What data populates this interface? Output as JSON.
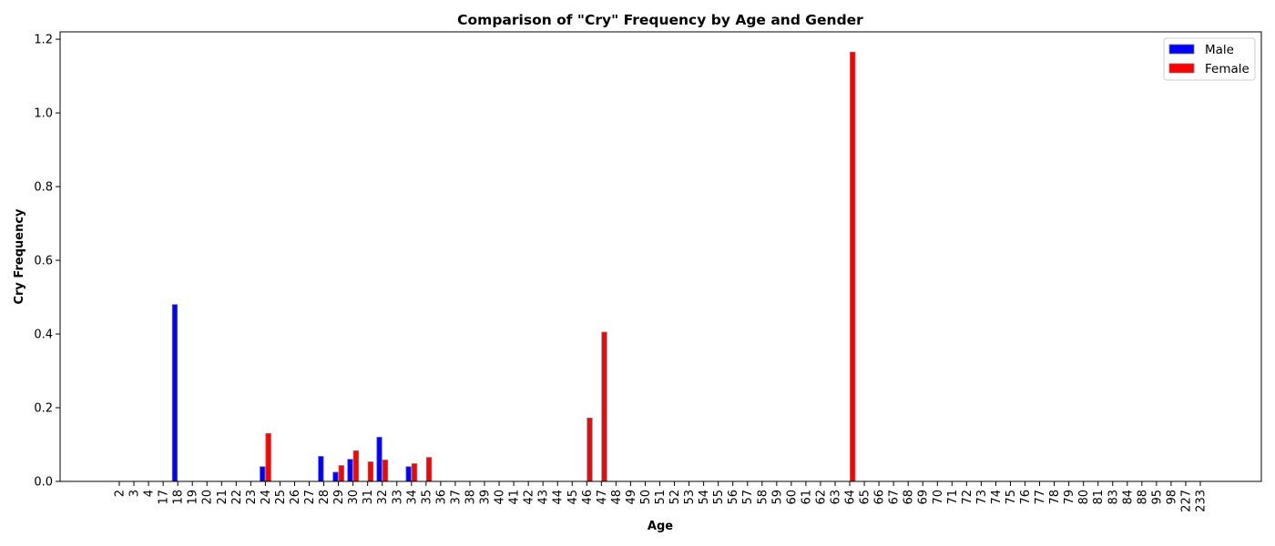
{
  "chart_data": {
    "type": "bar",
    "title": "Comparison of \"Cry\" Frequency by Age and Gender",
    "xlabel": "Age",
    "ylabel": "Cry Frequency",
    "ylim": [
      0,
      1.22
    ],
    "yticks": [
      "0.0",
      "0.2",
      "0.4",
      "0.6",
      "0.8",
      "1.0",
      "1.2"
    ],
    "grid": false,
    "legend_position": "top-right",
    "categories": [
      "2",
      "3",
      "4",
      "17",
      "18",
      "19",
      "20",
      "21",
      "22",
      "23",
      "24",
      "25",
      "26",
      "27",
      "28",
      "29",
      "30",
      "31",
      "32",
      "33",
      "34",
      "35",
      "36",
      "37",
      "38",
      "39",
      "40",
      "41",
      "42",
      "43",
      "44",
      "45",
      "46",
      "47",
      "48",
      "49",
      "50",
      "51",
      "52",
      "53",
      "54",
      "55",
      "56",
      "57",
      "58",
      "59",
      "60",
      "61",
      "62",
      "63",
      "64",
      "65",
      "66",
      "67",
      "68",
      "69",
      "70",
      "71",
      "72",
      "73",
      "74",
      "75",
      "76",
      "77",
      "78",
      "79",
      "80",
      "81",
      "83",
      "84",
      "88",
      "95",
      "98",
      "227",
      "233"
    ],
    "series": [
      {
        "name": "Male",
        "color": "#0000ff",
        "values": [
          0,
          0,
          0,
          0,
          0.48,
          0,
          0,
          0,
          0,
          0,
          0.04,
          0,
          0,
          0,
          0.068,
          0.025,
          0.06,
          0,
          0.12,
          0,
          0.04,
          0,
          0,
          0,
          0,
          0,
          0,
          0,
          0,
          0,
          0,
          0,
          0,
          0,
          0,
          0,
          0,
          0,
          0,
          0,
          0,
          0,
          0,
          0,
          0,
          0,
          0,
          0,
          0,
          0,
          0,
          0,
          0,
          0,
          0,
          0,
          0,
          0,
          0,
          0,
          0,
          0,
          0,
          0,
          0,
          0,
          0,
          0,
          0,
          0,
          0,
          0,
          0,
          0,
          0
        ]
      },
      {
        "name": "Female",
        "color": "#ff0000",
        "values": [
          0,
          0,
          0,
          0,
          0,
          0,
          0,
          0,
          0,
          0,
          0.13,
          0,
          0,
          0,
          0,
          0.043,
          0.083,
          0.053,
          0.058,
          0,
          0.048,
          0.065,
          0,
          0,
          0,
          0,
          0,
          0,
          0,
          0,
          0,
          0,
          0.172,
          0.405,
          0,
          0,
          0,
          0,
          0,
          0,
          0,
          0,
          0,
          0,
          0,
          0,
          0,
          0,
          0,
          0,
          1.165,
          0,
          0,
          0,
          0,
          0,
          0,
          0,
          0,
          0,
          0,
          0,
          0,
          0,
          0,
          0,
          0,
          0,
          0,
          0,
          0,
          0,
          0,
          0,
          0
        ]
      }
    ]
  }
}
